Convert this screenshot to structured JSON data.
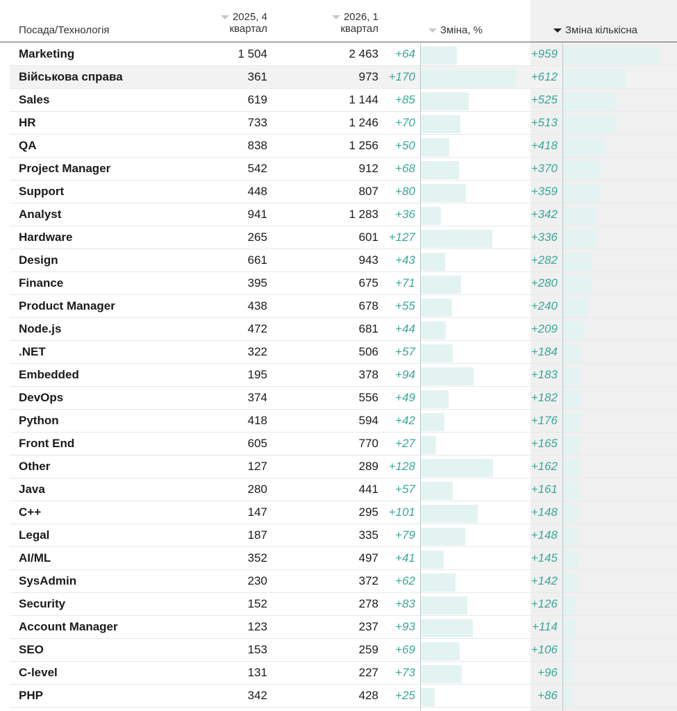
{
  "header": {
    "position": "Посада/Технологія",
    "q4_line1": "2025, 4",
    "q4_line2": "квартал",
    "q1_line1": "2026, 1",
    "q1_line2": "квартал",
    "change_pct": "Зміна, %",
    "change_abs": "Зміна кількісна"
  },
  "colors": {
    "accent": "#3aa79a",
    "bar": "#e3f3f1",
    "highlight_row": "#f2f2f2",
    "sorted_column_bg": "#f0f0f0"
  },
  "chart_data": {
    "type": "table",
    "sorted_by": "Зміна кількісна",
    "sort_order": "descending",
    "columns": [
      "Посада/Технологія",
      "2025, 4 квартал",
      "2026, 1 квартал",
      "Зміна, %",
      "Зміна кількісна"
    ],
    "rows": [
      {
        "name": "Marketing",
        "q4": "1 504",
        "q1": "2 463",
        "pct": "+64",
        "abs": "+959",
        "pct_v": 64,
        "abs_v": 959
      },
      {
        "name": "Військова справа",
        "q4": "361",
        "q1": "973",
        "pct": "+170",
        "abs": "+612",
        "pct_v": 170,
        "abs_v": 612,
        "highlight": true
      },
      {
        "name": "Sales",
        "q4": "619",
        "q1": "1 144",
        "pct": "+85",
        "abs": "+525",
        "pct_v": 85,
        "abs_v": 525
      },
      {
        "name": "HR",
        "q4": "733",
        "q1": "1 246",
        "pct": "+70",
        "abs": "+513",
        "pct_v": 70,
        "abs_v": 513
      },
      {
        "name": "QA",
        "q4": "838",
        "q1": "1 256",
        "pct": "+50",
        "abs": "+418",
        "pct_v": 50,
        "abs_v": 418
      },
      {
        "name": "Project Manager",
        "q4": "542",
        "q1": "912",
        "pct": "+68",
        "abs": "+370",
        "pct_v": 68,
        "abs_v": 370
      },
      {
        "name": "Support",
        "q4": "448",
        "q1": "807",
        "pct": "+80",
        "abs": "+359",
        "pct_v": 80,
        "abs_v": 359
      },
      {
        "name": "Analyst",
        "q4": "941",
        "q1": "1 283",
        "pct": "+36",
        "abs": "+342",
        "pct_v": 36,
        "abs_v": 342
      },
      {
        "name": "Hardware",
        "q4": "265",
        "q1": "601",
        "pct": "+127",
        "abs": "+336",
        "pct_v": 127,
        "abs_v": 336
      },
      {
        "name": "Design",
        "q4": "661",
        "q1": "943",
        "pct": "+43",
        "abs": "+282",
        "pct_v": 43,
        "abs_v": 282
      },
      {
        "name": "Finance",
        "q4": "395",
        "q1": "675",
        "pct": "+71",
        "abs": "+280",
        "pct_v": 71,
        "abs_v": 280
      },
      {
        "name": "Product Manager",
        "q4": "438",
        "q1": "678",
        "pct": "+55",
        "abs": "+240",
        "pct_v": 55,
        "abs_v": 240
      },
      {
        "name": "Node.js",
        "q4": "472",
        "q1": "681",
        "pct": "+44",
        "abs": "+209",
        "pct_v": 44,
        "abs_v": 209
      },
      {
        "name": ".NET",
        "q4": "322",
        "q1": "506",
        "pct": "+57",
        "abs": "+184",
        "pct_v": 57,
        "abs_v": 184
      },
      {
        "name": "Embedded",
        "q4": "195",
        "q1": "378",
        "pct": "+94",
        "abs": "+183",
        "pct_v": 94,
        "abs_v": 183
      },
      {
        "name": "DevOps",
        "q4": "374",
        "q1": "556",
        "pct": "+49",
        "abs": "+182",
        "pct_v": 49,
        "abs_v": 182
      },
      {
        "name": "Python",
        "q4": "418",
        "q1": "594",
        "pct": "+42",
        "abs": "+176",
        "pct_v": 42,
        "abs_v": 176
      },
      {
        "name": "Front End",
        "q4": "605",
        "q1": "770",
        "pct": "+27",
        "abs": "+165",
        "pct_v": 27,
        "abs_v": 165
      },
      {
        "name": "Other",
        "q4": "127",
        "q1": "289",
        "pct": "+128",
        "abs": "+162",
        "pct_v": 128,
        "abs_v": 162
      },
      {
        "name": "Java",
        "q4": "280",
        "q1": "441",
        "pct": "+57",
        "abs": "+161",
        "pct_v": 57,
        "abs_v": 161
      },
      {
        "name": "C++",
        "q4": "147",
        "q1": "295",
        "pct": "+101",
        "abs": "+148",
        "pct_v": 101,
        "abs_v": 148
      },
      {
        "name": "Legal",
        "q4": "187",
        "q1": "335",
        "pct": "+79",
        "abs": "+148",
        "pct_v": 79,
        "abs_v": 148
      },
      {
        "name": "AI/ML",
        "q4": "352",
        "q1": "497",
        "pct": "+41",
        "abs": "+145",
        "pct_v": 41,
        "abs_v": 145
      },
      {
        "name": "SysAdmin",
        "q4": "230",
        "q1": "372",
        "pct": "+62",
        "abs": "+142",
        "pct_v": 62,
        "abs_v": 142
      },
      {
        "name": "Security",
        "q4": "152",
        "q1": "278",
        "pct": "+83",
        "abs": "+126",
        "pct_v": 83,
        "abs_v": 126
      },
      {
        "name": "Account Manager",
        "q4": "123",
        "q1": "237",
        "pct": "+93",
        "abs": "+114",
        "pct_v": 93,
        "abs_v": 114
      },
      {
        "name": "SEO",
        "q4": "153",
        "q1": "259",
        "pct": "+69",
        "abs": "+106",
        "pct_v": 69,
        "abs_v": 106
      },
      {
        "name": "C-level",
        "q4": "131",
        "q1": "227",
        "pct": "+73",
        "abs": "+96",
        "pct_v": 73,
        "abs_v": 96
      },
      {
        "name": "PHP",
        "q4": "342",
        "q1": "428",
        "pct": "+25",
        "abs": "+86",
        "pct_v": 25,
        "abs_v": 86
      }
    ]
  }
}
